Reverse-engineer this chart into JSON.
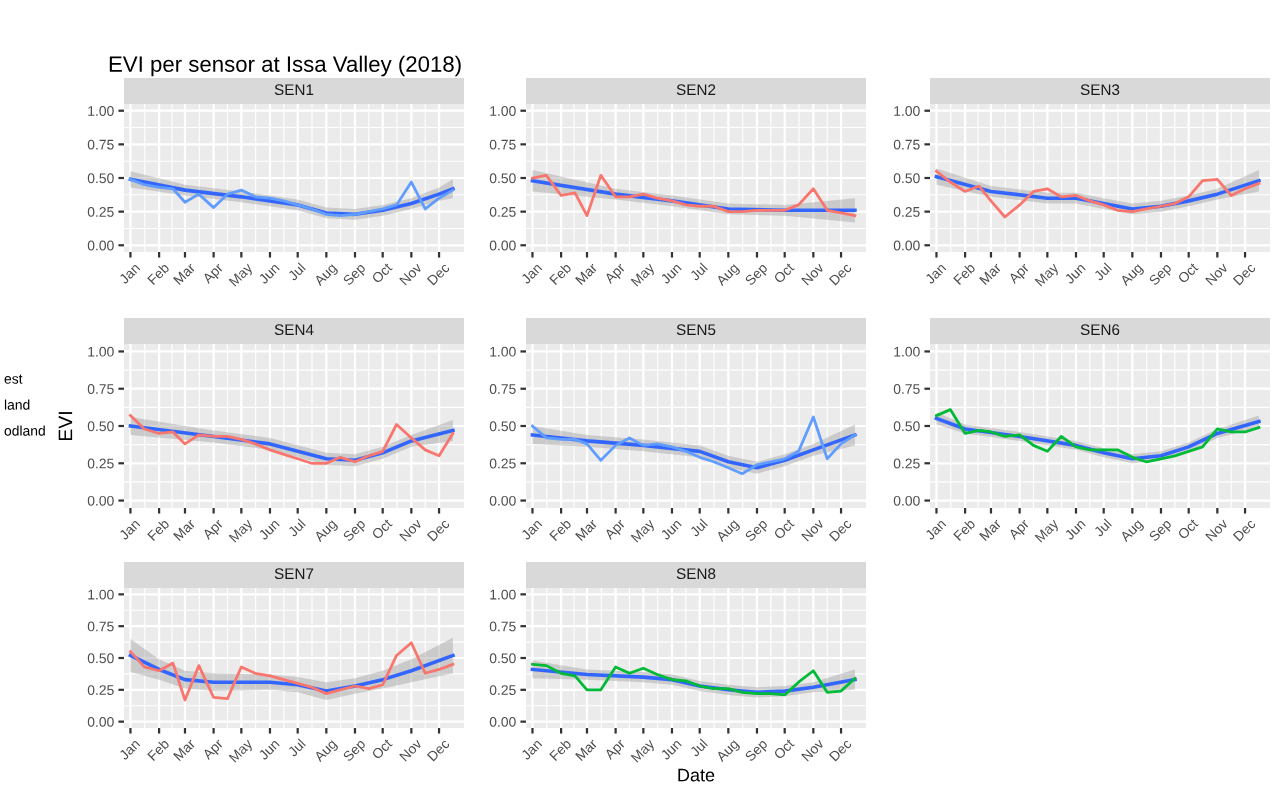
{
  "chart_data": [
    {
      "type": "line",
      "title": "SEN1",
      "annotations": [
        "EVI per sensor at Issa Valley (2018)"
      ],
      "xlim": [
        "2017-12-25",
        "2018-12-28"
      ],
      "xticks": [
        {
          "value": "2018-01-01",
          "label": "Jan"
        },
        {
          "value": "2018-02-01",
          "label": "Feb"
        },
        {
          "value": "2018-03-01",
          "label": "Mar"
        },
        {
          "value": "2018-04-01",
          "label": "Apr"
        },
        {
          "value": "2018-05-01",
          "label": "May"
        },
        {
          "value": "2018-06-01",
          "label": "Jun"
        },
        {
          "value": "2018-07-01",
          "label": "Jul"
        },
        {
          "value": "2018-08-01",
          "label": "Aug"
        },
        {
          "value": "2018-09-01",
          "label": "Sep"
        },
        {
          "value": "2018-10-01",
          "label": "Oct"
        },
        {
          "value": "2018-11-01",
          "label": "Nov"
        },
        {
          "value": "2018-12-01",
          "label": "Dec"
        }
      ],
      "ylim": [
        -0.05,
        1.05
      ],
      "yticks": [
        {
          "value": 0,
          "label": "0.00"
        },
        {
          "value": 0.25,
          "label": "0.25"
        },
        {
          "value": 0.5,
          "label": "0.50"
        },
        {
          "value": 0.75,
          "label": "0.75"
        },
        {
          "value": 1,
          "label": "1.00"
        }
      ],
      "grid": true,
      "x": [
        "2018-01-01",
        "2018-01-16",
        "2018-02-01",
        "2018-02-16",
        "2018-03-01",
        "2018-03-16",
        "2018-04-01",
        "2018-04-16",
        "2018-05-01",
        "2018-05-16",
        "2018-06-01",
        "2018-06-16",
        "2018-07-01",
        "2018-07-16",
        "2018-08-01",
        "2018-08-16",
        "2018-09-01",
        "2018-09-16",
        "2018-10-01",
        "2018-10-16",
        "2018-11-01",
        "2018-11-16",
        "2018-12-01",
        "2018-12-16"
      ],
      "series": [
        {
          "color": "#619cff",
          "values": [
            0.49,
            0.45,
            0.43,
            0.42,
            0.32,
            0.38,
            0.28,
            0.38,
            0.41,
            0.36,
            0.35,
            0.33,
            0.3,
            0.27,
            0.23,
            0.22,
            0.23,
            0.25,
            0.27,
            0.3,
            0.47,
            0.27,
            0.35,
            0.41
          ]
        },
        {
          "color": "#3366ff",
          "x": [
            "2018-01-01",
            "2018-03-01",
            "2018-05-01",
            "2018-07-01",
            "2018-08-01",
            "2018-09-01",
            "2018-10-01",
            "2018-11-01",
            "2018-12-01",
            "2018-12-16"
          ],
          "values": [
            0.49,
            0.41,
            0.36,
            0.3,
            0.24,
            0.23,
            0.26,
            0.31,
            0.38,
            0.42
          ],
          "lower": [
            0.43,
            0.37,
            0.32,
            0.26,
            0.2,
            0.19,
            0.22,
            0.27,
            0.33,
            0.35
          ],
          "upper": [
            0.55,
            0.45,
            0.4,
            0.34,
            0.28,
            0.27,
            0.3,
            0.35,
            0.43,
            0.49
          ]
        }
      ]
    },
    {
      "type": "line",
      "title": "SEN2",
      "xlim": [
        "2017-12-25",
        "2018-12-28"
      ],
      "xticks": [
        {
          "value": "2018-01-01",
          "label": "Jan"
        },
        {
          "value": "2018-02-01",
          "label": "Feb"
        },
        {
          "value": "2018-03-01",
          "label": "Mar"
        },
        {
          "value": "2018-04-01",
          "label": "Apr"
        },
        {
          "value": "2018-05-01",
          "label": "May"
        },
        {
          "value": "2018-06-01",
          "label": "Jun"
        },
        {
          "value": "2018-07-01",
          "label": "Jul"
        },
        {
          "value": "2018-08-01",
          "label": "Aug"
        },
        {
          "value": "2018-09-01",
          "label": "Sep"
        },
        {
          "value": "2018-10-01",
          "label": "Oct"
        },
        {
          "value": "2018-11-01",
          "label": "Nov"
        },
        {
          "value": "2018-12-01",
          "label": "Dec"
        }
      ],
      "ylim": [
        -0.05,
        1.05
      ],
      "yticks": [
        {
          "value": 0,
          "label": "0.00"
        },
        {
          "value": 0.25,
          "label": "0.25"
        },
        {
          "value": 0.5,
          "label": "0.50"
        },
        {
          "value": 0.75,
          "label": "0.75"
        },
        {
          "value": 1,
          "label": "1.00"
        }
      ],
      "grid": true,
      "x": [
        "2018-01-01",
        "2018-01-16",
        "2018-02-01",
        "2018-02-16",
        "2018-03-01",
        "2018-03-16",
        "2018-04-01",
        "2018-04-16",
        "2018-05-01",
        "2018-05-16",
        "2018-06-01",
        "2018-06-16",
        "2018-07-01",
        "2018-07-16",
        "2018-08-01",
        "2018-08-16",
        "2018-09-01",
        "2018-09-16",
        "2018-10-01",
        "2018-10-16",
        "2018-11-01",
        "2018-11-16",
        "2018-12-01",
        "2018-12-16"
      ],
      "series": [
        {
          "color": "#f8766d",
          "values": [
            0.5,
            0.52,
            0.37,
            0.39,
            0.22,
            0.52,
            0.36,
            0.36,
            0.38,
            0.35,
            0.33,
            0.3,
            0.29,
            0.29,
            0.25,
            0.25,
            0.26,
            0.26,
            0.26,
            0.3,
            0.42,
            0.26,
            0.24,
            0.22
          ]
        },
        {
          "color": "#3366ff",
          "x": [
            "2018-01-01",
            "2018-04-01",
            "2018-06-01",
            "2018-08-01",
            "2018-10-01",
            "2018-12-16"
          ],
          "values": [
            0.48,
            0.38,
            0.33,
            0.27,
            0.26,
            0.26
          ],
          "lower": [
            0.4,
            0.34,
            0.29,
            0.23,
            0.22,
            0.17
          ],
          "upper": [
            0.56,
            0.42,
            0.37,
            0.31,
            0.3,
            0.35
          ]
        }
      ]
    },
    {
      "type": "line",
      "title": "SEN3",
      "xlim": [
        "2017-12-25",
        "2018-12-28"
      ],
      "xticks": [
        {
          "value": "2018-01-01",
          "label": "Jan"
        },
        {
          "value": "2018-02-01",
          "label": "Feb"
        },
        {
          "value": "2018-03-01",
          "label": "Mar"
        },
        {
          "value": "2018-04-01",
          "label": "Apr"
        },
        {
          "value": "2018-05-01",
          "label": "May"
        },
        {
          "value": "2018-06-01",
          "label": "Jun"
        },
        {
          "value": "2018-07-01",
          "label": "Jul"
        },
        {
          "value": "2018-08-01",
          "label": "Aug"
        },
        {
          "value": "2018-09-01",
          "label": "Sep"
        },
        {
          "value": "2018-10-01",
          "label": "Oct"
        },
        {
          "value": "2018-11-01",
          "label": "Nov"
        },
        {
          "value": "2018-12-01",
          "label": "Dec"
        }
      ],
      "ylim": [
        -0.05,
        1.05
      ],
      "yticks": [
        {
          "value": 0,
          "label": "0.00"
        },
        {
          "value": 0.25,
          "label": "0.25"
        },
        {
          "value": 0.5,
          "label": "0.50"
        },
        {
          "value": 0.75,
          "label": "0.75"
        },
        {
          "value": 1,
          "label": "1.00"
        }
      ],
      "grid": true,
      "x": [
        "2018-01-01",
        "2018-01-16",
        "2018-02-01",
        "2018-02-16",
        "2018-03-01",
        "2018-03-16",
        "2018-04-01",
        "2018-04-16",
        "2018-05-01",
        "2018-05-16",
        "2018-06-01",
        "2018-06-16",
        "2018-07-01",
        "2018-07-16",
        "2018-08-01",
        "2018-08-16",
        "2018-09-01",
        "2018-09-16",
        "2018-10-01",
        "2018-10-16",
        "2018-11-01",
        "2018-11-16",
        "2018-12-01",
        "2018-12-16"
      ],
      "series": [
        {
          "color": "#f8766d",
          "values": [
            0.55,
            0.47,
            0.4,
            0.44,
            0.33,
            0.21,
            0.3,
            0.4,
            0.42,
            0.36,
            0.37,
            0.33,
            0.3,
            0.26,
            0.25,
            0.27,
            0.29,
            0.31,
            0.36,
            0.48,
            0.49,
            0.37,
            0.42,
            0.46
          ]
        },
        {
          "color": "#3366ff",
          "x": [
            "2018-01-01",
            "2018-03-01",
            "2018-05-01",
            "2018-06-01",
            "2018-07-01",
            "2018-08-01",
            "2018-09-01",
            "2018-10-01",
            "2018-11-01",
            "2018-12-16"
          ],
          "values": [
            0.51,
            0.4,
            0.35,
            0.35,
            0.31,
            0.27,
            0.29,
            0.33,
            0.38,
            0.48
          ],
          "lower": [
            0.45,
            0.36,
            0.31,
            0.31,
            0.27,
            0.23,
            0.25,
            0.29,
            0.34,
            0.4
          ],
          "upper": [
            0.57,
            0.44,
            0.39,
            0.39,
            0.35,
            0.31,
            0.33,
            0.37,
            0.42,
            0.56
          ]
        }
      ]
    },
    {
      "type": "line",
      "title": "SEN4",
      "ylabel": "EVI",
      "annotations": [
        "est",
        "land",
        "odland"
      ],
      "xlim": [
        "2017-12-25",
        "2018-12-28"
      ],
      "xticks": [
        {
          "value": "2018-01-01",
          "label": "Jan"
        },
        {
          "value": "2018-02-01",
          "label": "Feb"
        },
        {
          "value": "2018-03-01",
          "label": "Mar"
        },
        {
          "value": "2018-04-01",
          "label": "Apr"
        },
        {
          "value": "2018-05-01",
          "label": "May"
        },
        {
          "value": "2018-06-01",
          "label": "Jun"
        },
        {
          "value": "2018-07-01",
          "label": "Jul"
        },
        {
          "value": "2018-08-01",
          "label": "Aug"
        },
        {
          "value": "2018-09-01",
          "label": "Sep"
        },
        {
          "value": "2018-10-01",
          "label": "Oct"
        },
        {
          "value": "2018-11-01",
          "label": "Nov"
        },
        {
          "value": "2018-12-01",
          "label": "Dec"
        }
      ],
      "ylim": [
        -0.05,
        1.05
      ],
      "yticks": [
        {
          "value": 0,
          "label": "0.00"
        },
        {
          "value": 0.25,
          "label": "0.25"
        },
        {
          "value": 0.5,
          "label": "0.50"
        },
        {
          "value": 0.75,
          "label": "0.75"
        },
        {
          "value": 1,
          "label": "1.00"
        }
      ],
      "grid": true,
      "x": [
        "2018-01-01",
        "2018-01-16",
        "2018-02-01",
        "2018-02-16",
        "2018-03-01",
        "2018-03-16",
        "2018-04-01",
        "2018-04-16",
        "2018-05-01",
        "2018-05-16",
        "2018-06-01",
        "2018-06-16",
        "2018-07-01",
        "2018-07-16",
        "2018-08-01",
        "2018-08-16",
        "2018-09-01",
        "2018-09-16",
        "2018-10-01",
        "2018-10-16",
        "2018-11-01",
        "2018-11-16",
        "2018-12-01",
        "2018-12-16"
      ],
      "series": [
        {
          "color": "#f8766d",
          "values": [
            0.57,
            0.48,
            0.45,
            0.46,
            0.38,
            0.44,
            0.43,
            0.43,
            0.41,
            0.38,
            0.34,
            0.31,
            0.28,
            0.25,
            0.25,
            0.29,
            0.26,
            0.3,
            0.33,
            0.51,
            0.42,
            0.34,
            0.3,
            0.45
          ]
        },
        {
          "color": "#3366ff",
          "x": [
            "2018-01-01",
            "2018-04-01",
            "2018-06-01",
            "2018-08-01",
            "2018-09-01",
            "2018-10-01",
            "2018-11-01",
            "2018-12-16"
          ],
          "values": [
            0.5,
            0.43,
            0.38,
            0.28,
            0.27,
            0.32,
            0.4,
            0.47
          ],
          "lower": [
            0.44,
            0.39,
            0.34,
            0.24,
            0.23,
            0.28,
            0.36,
            0.4
          ],
          "upper": [
            0.56,
            0.47,
            0.42,
            0.32,
            0.31,
            0.36,
            0.44,
            0.54
          ]
        }
      ]
    },
    {
      "type": "line",
      "title": "SEN5",
      "xlim": [
        "2017-12-25",
        "2018-12-28"
      ],
      "xticks": [
        {
          "value": "2018-01-01",
          "label": "Jan"
        },
        {
          "value": "2018-02-01",
          "label": "Feb"
        },
        {
          "value": "2018-03-01",
          "label": "Mar"
        },
        {
          "value": "2018-04-01",
          "label": "Apr"
        },
        {
          "value": "2018-05-01",
          "label": "May"
        },
        {
          "value": "2018-06-01",
          "label": "Jun"
        },
        {
          "value": "2018-07-01",
          "label": "Jul"
        },
        {
          "value": "2018-08-01",
          "label": "Aug"
        },
        {
          "value": "2018-09-01",
          "label": "Sep"
        },
        {
          "value": "2018-10-01",
          "label": "Oct"
        },
        {
          "value": "2018-11-01",
          "label": "Nov"
        },
        {
          "value": "2018-12-01",
          "label": "Dec"
        }
      ],
      "ylim": [
        -0.05,
        1.05
      ],
      "yticks": [
        {
          "value": 0,
          "label": "0.00"
        },
        {
          "value": 0.25,
          "label": "0.25"
        },
        {
          "value": 0.5,
          "label": "0.50"
        },
        {
          "value": 0.75,
          "label": "0.75"
        },
        {
          "value": 1,
          "label": "1.00"
        }
      ],
      "grid": true,
      "x": [
        "2018-01-01",
        "2018-01-16",
        "2018-02-01",
        "2018-02-16",
        "2018-03-01",
        "2018-03-16",
        "2018-04-01",
        "2018-04-16",
        "2018-05-01",
        "2018-05-16",
        "2018-06-01",
        "2018-06-16",
        "2018-07-01",
        "2018-07-16",
        "2018-08-01",
        "2018-08-16",
        "2018-09-01",
        "2018-09-16",
        "2018-10-01",
        "2018-10-16",
        "2018-11-01",
        "2018-11-16",
        "2018-12-01",
        "2018-12-16"
      ],
      "series": [
        {
          "color": "#619cff",
          "values": [
            0.5,
            0.42,
            0.41,
            0.41,
            0.38,
            0.27,
            0.37,
            0.42,
            0.37,
            0.38,
            0.36,
            0.33,
            0.29,
            0.26,
            0.22,
            0.18,
            0.24,
            0.26,
            0.28,
            0.33,
            0.56,
            0.28,
            0.38,
            0.44
          ]
        },
        {
          "color": "#3366ff",
          "x": [
            "2018-01-01",
            "2018-03-01",
            "2018-05-01",
            "2018-07-01",
            "2018-08-01",
            "2018-09-01",
            "2018-10-01",
            "2018-11-01",
            "2018-12-16"
          ],
          "values": [
            0.44,
            0.4,
            0.37,
            0.33,
            0.26,
            0.22,
            0.27,
            0.34,
            0.44
          ],
          "lower": [
            0.38,
            0.36,
            0.33,
            0.29,
            0.22,
            0.18,
            0.23,
            0.3,
            0.37
          ],
          "upper": [
            0.5,
            0.44,
            0.41,
            0.37,
            0.3,
            0.26,
            0.31,
            0.38,
            0.51
          ]
        }
      ]
    },
    {
      "type": "line",
      "title": "SEN6",
      "xlim": [
        "2017-12-25",
        "2018-12-28"
      ],
      "xticks": [
        {
          "value": "2018-01-01",
          "label": "Jan"
        },
        {
          "value": "2018-02-01",
          "label": "Feb"
        },
        {
          "value": "2018-03-01",
          "label": "Mar"
        },
        {
          "value": "2018-04-01",
          "label": "Apr"
        },
        {
          "value": "2018-05-01",
          "label": "May"
        },
        {
          "value": "2018-06-01",
          "label": "Jun"
        },
        {
          "value": "2018-07-01",
          "label": "Jul"
        },
        {
          "value": "2018-08-01",
          "label": "Aug"
        },
        {
          "value": "2018-09-01",
          "label": "Sep"
        },
        {
          "value": "2018-10-01",
          "label": "Oct"
        },
        {
          "value": "2018-11-01",
          "label": "Nov"
        },
        {
          "value": "2018-12-01",
          "label": "Dec"
        }
      ],
      "ylim": [
        -0.05,
        1.05
      ],
      "yticks": [
        {
          "value": 0,
          "label": "0.00"
        },
        {
          "value": 0.25,
          "label": "0.25"
        },
        {
          "value": 0.5,
          "label": "0.50"
        },
        {
          "value": 0.75,
          "label": "0.75"
        },
        {
          "value": 1,
          "label": "1.00"
        }
      ],
      "grid": true,
      "x": [
        "2018-01-01",
        "2018-01-16",
        "2018-02-01",
        "2018-02-16",
        "2018-03-01",
        "2018-03-16",
        "2018-04-01",
        "2018-04-16",
        "2018-05-01",
        "2018-05-16",
        "2018-06-01",
        "2018-06-16",
        "2018-07-01",
        "2018-07-16",
        "2018-08-01",
        "2018-08-16",
        "2018-09-01",
        "2018-09-16",
        "2018-10-01",
        "2018-10-16",
        "2018-11-01",
        "2018-11-16",
        "2018-12-01",
        "2018-12-16"
      ],
      "series": [
        {
          "color": "#00ba38",
          "values": [
            0.57,
            0.61,
            0.45,
            0.47,
            0.46,
            0.43,
            0.44,
            0.37,
            0.33,
            0.43,
            0.36,
            0.34,
            0.34,
            0.34,
            0.29,
            0.26,
            0.28,
            0.3,
            0.33,
            0.36,
            0.48,
            0.46,
            0.46,
            0.49
          ]
        },
        {
          "color": "#3366ff",
          "x": [
            "2018-01-01",
            "2018-02-01",
            "2018-04-01",
            "2018-06-01",
            "2018-07-01",
            "2018-08-01",
            "2018-09-01",
            "2018-10-01",
            "2018-11-01",
            "2018-12-16"
          ],
          "values": [
            0.55,
            0.48,
            0.43,
            0.37,
            0.32,
            0.28,
            0.3,
            0.36,
            0.45,
            0.53
          ],
          "lower": [
            0.51,
            0.45,
            0.4,
            0.34,
            0.29,
            0.25,
            0.27,
            0.33,
            0.42,
            0.49
          ],
          "upper": [
            0.59,
            0.51,
            0.46,
            0.4,
            0.35,
            0.31,
            0.33,
            0.39,
            0.48,
            0.57
          ]
        }
      ]
    },
    {
      "type": "line",
      "title": "SEN7",
      "xlim": [
        "2017-12-25",
        "2018-12-28"
      ],
      "xticks": [
        {
          "value": "2018-01-01",
          "label": "Jan"
        },
        {
          "value": "2018-02-01",
          "label": "Feb"
        },
        {
          "value": "2018-03-01",
          "label": "Mar"
        },
        {
          "value": "2018-04-01",
          "label": "Apr"
        },
        {
          "value": "2018-05-01",
          "label": "May"
        },
        {
          "value": "2018-06-01",
          "label": "Jun"
        },
        {
          "value": "2018-07-01",
          "label": "Jul"
        },
        {
          "value": "2018-08-01",
          "label": "Aug"
        },
        {
          "value": "2018-09-01",
          "label": "Sep"
        },
        {
          "value": "2018-10-01",
          "label": "Oct"
        },
        {
          "value": "2018-11-01",
          "label": "Nov"
        },
        {
          "value": "2018-12-01",
          "label": "Dec"
        }
      ],
      "ylim": [
        -0.05,
        1.05
      ],
      "yticks": [
        {
          "value": 0,
          "label": "0.00"
        },
        {
          "value": 0.25,
          "label": "0.25"
        },
        {
          "value": 0.5,
          "label": "0.50"
        },
        {
          "value": 0.75,
          "label": "0.75"
        },
        {
          "value": 1,
          "label": "1.00"
        }
      ],
      "grid": true,
      "x": [
        "2018-01-01",
        "2018-01-16",
        "2018-02-01",
        "2018-02-16",
        "2018-03-01",
        "2018-03-16",
        "2018-04-01",
        "2018-04-16",
        "2018-05-01",
        "2018-05-16",
        "2018-06-01",
        "2018-06-16",
        "2018-07-01",
        "2018-07-16",
        "2018-08-01",
        "2018-08-16",
        "2018-09-01",
        "2018-09-16",
        "2018-10-01",
        "2018-10-16",
        "2018-11-01",
        "2018-11-16",
        "2018-12-01",
        "2018-12-16"
      ],
      "series": [
        {
          "color": "#f8766d",
          "values": [
            0.55,
            0.43,
            0.4,
            0.46,
            0.17,
            0.44,
            0.19,
            0.18,
            0.43,
            0.38,
            0.36,
            0.33,
            0.3,
            0.27,
            0.22,
            0.25,
            0.28,
            0.26,
            0.29,
            0.52,
            0.62,
            0.38,
            0.41,
            0.45
          ]
        },
        {
          "color": "#3366ff",
          "x": [
            "2018-01-01",
            "2018-02-01",
            "2018-03-01",
            "2018-04-01",
            "2018-06-01",
            "2018-07-01",
            "2018-08-01",
            "2018-09-01",
            "2018-10-01",
            "2018-11-01",
            "2018-12-16"
          ],
          "values": [
            0.52,
            0.41,
            0.33,
            0.31,
            0.31,
            0.29,
            0.24,
            0.28,
            0.33,
            0.4,
            0.52
          ],
          "lower": [
            0.39,
            0.33,
            0.26,
            0.24,
            0.25,
            0.23,
            0.17,
            0.22,
            0.26,
            0.31,
            0.38
          ],
          "upper": [
            0.65,
            0.49,
            0.4,
            0.38,
            0.37,
            0.35,
            0.31,
            0.34,
            0.4,
            0.49,
            0.66
          ]
        }
      ]
    },
    {
      "type": "line",
      "title": "SEN8",
      "xlabel": "Date",
      "xlim": [
        "2017-12-25",
        "2018-12-28"
      ],
      "xticks": [
        {
          "value": "2018-01-01",
          "label": "Jan"
        },
        {
          "value": "2018-02-01",
          "label": "Feb"
        },
        {
          "value": "2018-03-01",
          "label": "Mar"
        },
        {
          "value": "2018-04-01",
          "label": "Apr"
        },
        {
          "value": "2018-05-01",
          "label": "May"
        },
        {
          "value": "2018-06-01",
          "label": "Jun"
        },
        {
          "value": "2018-07-01",
          "label": "Jul"
        },
        {
          "value": "2018-08-01",
          "label": "Aug"
        },
        {
          "value": "2018-09-01",
          "label": "Sep"
        },
        {
          "value": "2018-10-01",
          "label": "Oct"
        },
        {
          "value": "2018-11-01",
          "label": "Nov"
        },
        {
          "value": "2018-12-01",
          "label": "Dec"
        }
      ],
      "ylim": [
        -0.05,
        1.05
      ],
      "yticks": [
        {
          "value": 0,
          "label": "0.00"
        },
        {
          "value": 0.25,
          "label": "0.25"
        },
        {
          "value": 0.5,
          "label": "0.50"
        },
        {
          "value": 0.75,
          "label": "0.75"
        },
        {
          "value": 1,
          "label": "1.00"
        }
      ],
      "grid": true,
      "x": [
        "2018-01-01",
        "2018-01-16",
        "2018-02-01",
        "2018-02-16",
        "2018-03-01",
        "2018-03-16",
        "2018-04-01",
        "2018-04-16",
        "2018-05-01",
        "2018-05-16",
        "2018-06-01",
        "2018-06-16",
        "2018-07-01",
        "2018-07-16",
        "2018-08-01",
        "2018-08-16",
        "2018-09-01",
        "2018-09-16",
        "2018-10-01",
        "2018-10-16",
        "2018-11-01",
        "2018-11-16",
        "2018-12-01",
        "2018-12-16"
      ],
      "series": [
        {
          "color": "#00ba38",
          "values": [
            0.45,
            0.44,
            0.38,
            0.36,
            0.25,
            0.25,
            0.43,
            0.38,
            0.42,
            0.37,
            0.33,
            0.32,
            0.28,
            0.26,
            0.26,
            0.23,
            0.22,
            0.22,
            0.21,
            0.31,
            0.4,
            0.23,
            0.24,
            0.34
          ]
        },
        {
          "color": "#3366ff",
          "x": [
            "2018-01-01",
            "2018-03-01",
            "2018-05-01",
            "2018-06-01",
            "2018-07-01",
            "2018-08-01",
            "2018-09-01",
            "2018-10-01",
            "2018-11-01",
            "2018-12-16"
          ],
          "values": [
            0.41,
            0.37,
            0.35,
            0.33,
            0.28,
            0.25,
            0.23,
            0.24,
            0.27,
            0.33
          ],
          "lower": [
            0.34,
            0.33,
            0.31,
            0.29,
            0.24,
            0.21,
            0.19,
            0.2,
            0.23,
            0.25
          ],
          "upper": [
            0.48,
            0.41,
            0.39,
            0.37,
            0.32,
            0.29,
            0.27,
            0.28,
            0.31,
            0.41
          ]
        }
      ]
    }
  ]
}
